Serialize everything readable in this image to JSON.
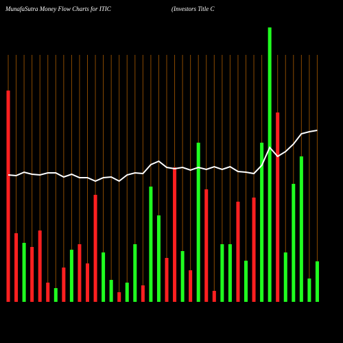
{
  "chart_data": {
    "type": "bar",
    "title": "MunafaSutra  Money Flow  Charts for ITIC",
    "subtitle": "(Investors Title   C",
    "ylim": [
      0,
      100
    ],
    "grid": true,
    "grid_color": "#8a4a00",
    "line_color": "#ffffff",
    "values": [
      77,
      25,
      21.5,
      20,
      26,
      7,
      5,
      12.5,
      19,
      21,
      14,
      39,
      18,
      8,
      3.5,
      7,
      21,
      6,
      42,
      31.5,
      16,
      49,
      18.5,
      11.5,
      58,
      41,
      4,
      21,
      21,
      36.5,
      15,
      38,
      58,
      100,
      69,
      18,
      43,
      53,
      8.5,
      14.75
    ],
    "colors": [
      "#ff2020",
      "#ff2020",
      "#20ff20",
      "#ff2020",
      "#ff2020",
      "#ff2020",
      "#20ff20",
      "#ff2020",
      "#20ff20",
      "#ff2020",
      "#ff2020",
      "#ff2020",
      "#20ff20",
      "#20ff20",
      "#ff2020",
      "#20ff20",
      "#20ff20",
      "#ff2020",
      "#20ff20",
      "#20ff20",
      "#ff2020",
      "#ff2020",
      "#20ff20",
      "#ff2020",
      "#20ff20",
      "#ff2020",
      "#ff2020",
      "#20ff20",
      "#20ff20",
      "#ff2020",
      "#20ff20",
      "#ff2020",
      "#20ff20",
      "#20ff20",
      "#ff2020",
      "#20ff20",
      "#20ff20",
      "#20ff20",
      "#20ff20",
      "#20ff20"
    ],
    "line": [
      46.25,
      46,
      47.25,
      46.5,
      46.25,
      47,
      47,
      45.5,
      46.5,
      45.25,
      45.25,
      44,
      45.25,
      45.5,
      44,
      46.25,
      47,
      46.75,
      50,
      51.25,
      49,
      48.5,
      49,
      48,
      49,
      48.25,
      49.25,
      48.25,
      49.25,
      47.5,
      47.25,
      46.75,
      49.75,
      56.25,
      53,
      54.75,
      57.5,
      61.25,
      62,
      62.5
    ]
  }
}
